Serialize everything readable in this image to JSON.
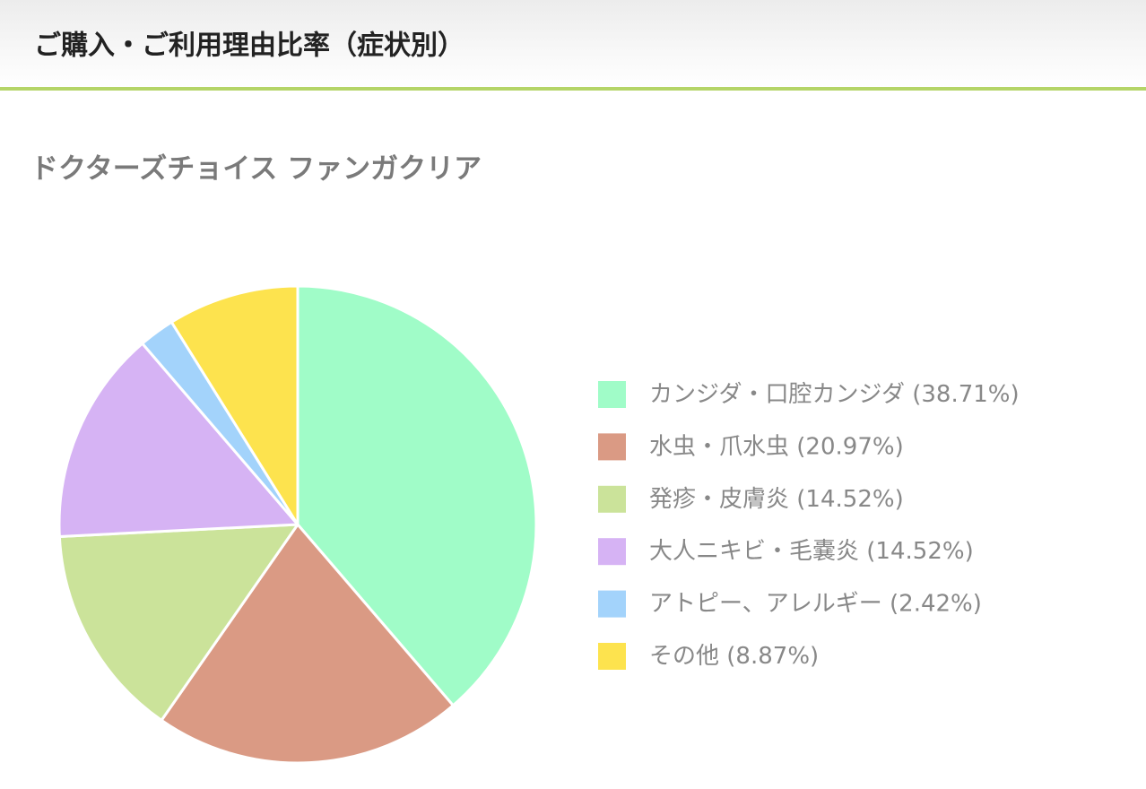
{
  "chart_data": {
    "type": "pie",
    "title": "ご購入・ご利用理由比率（症状別）",
    "subtitle": "ドクターズチョイス ファンガクリア",
    "categories": [
      "カンジダ・口腔カンジダ",
      "水虫・爪水虫",
      "発疹・皮膚炎",
      "大人ニキビ・毛嚢炎",
      "アトピー、アレルギー",
      "その他"
    ],
    "values": [
      38.71,
      20.97,
      14.52,
      14.52,
      2.42,
      8.87
    ],
    "value_labels": [
      "(38.71%)",
      "(20.97%)",
      "(14.52%)",
      "(14.52%)",
      "(2.42%)",
      "(8.87%)"
    ],
    "colors": [
      "#a0fcc8",
      "#da9a84",
      "#cbe39a",
      "#d6b3f4",
      "#a3d3fb",
      "#fde34e"
    ],
    "legend": "right"
  }
}
